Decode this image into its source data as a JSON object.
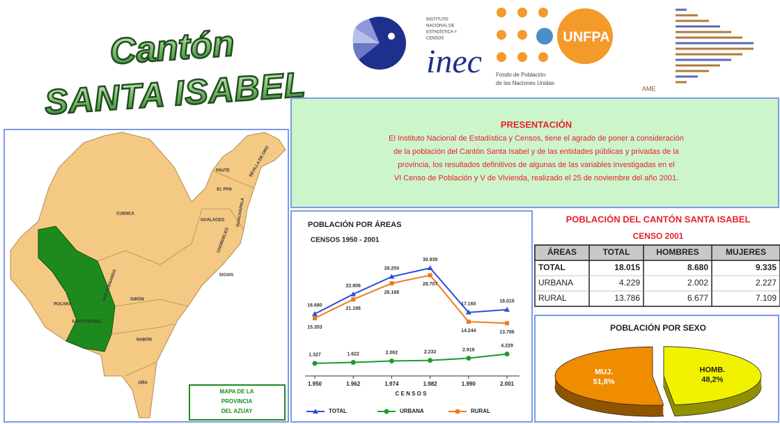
{
  "header": {
    "title_line1": "Cantón",
    "title_line2": "SANTA ISABEL"
  },
  "logos": {
    "inec_small": [
      "INSTITUTO",
      "NACIONAL DE",
      "ESTADÍSTICA Y",
      "CENSOS"
    ],
    "inec": "inec",
    "unfpa": "UNFPA",
    "unfpa_caption": [
      "Fondo de Población",
      "de las Naciones Unidas"
    ],
    "ame": "AME"
  },
  "presentation": {
    "title": "PRESENTACIÓN",
    "lines": [
      "El Instituto Nacional de Estadística y Censos, tiene el agrado de poner a consideración",
      "de la población del Cantón Santa Isabel y de las entidades públicas y privadas de la",
      "provincia, los resultados definitivos de algunas de las variables investigadas en el",
      "VI Censo de Población y V de Vivienda, realizado el 25 de noviembre del año 2001."
    ]
  },
  "map": {
    "caption": [
      "MAPA DE LA",
      "PROVINCIA",
      "DEL AZUAY"
    ],
    "labels": [
      "CUENCA",
      "PAUTE",
      "SEVILLA DE ORO",
      "EL PAN",
      "GUACHAPALA",
      "GUALACEO",
      "CHORDELEG",
      "SIGSIG",
      "PUCARÁ",
      "SANTA ISABEL",
      "SAN FERNANDO",
      "GIRÓN",
      "NABÓN",
      "OÑA"
    ]
  },
  "chart_data": [
    {
      "type": "line",
      "title": "POBLACIÓN POR ÁREAS",
      "subtitle": "CENSOS 1950 - 2001",
      "x_label": "C E N S O S",
      "categories": [
        "1.950",
        "1.962",
        "1.974",
        "1.982",
        "1.990",
        "2.001"
      ],
      "series": [
        {
          "name": "TOTAL",
          "color": "#2b4fd6",
          "marker": "triangle",
          "values": [
            16680,
            22808,
            28250,
            30939,
            17160,
            18015
          ],
          "value_labels": [
            "16.680",
            "22.808",
            "28.250",
            "30.939",
            "17.160",
            "18.015"
          ]
        },
        {
          "name": "URBANA",
          "color": "#1e9a2e",
          "marker": "circle",
          "values": [
            1327,
            1622,
            2062,
            2232,
            2916,
            4229
          ],
          "value_labels": [
            "1.327",
            "1.622",
            "2.062",
            "2.232",
            "2.916",
            "4.229"
          ]
        },
        {
          "name": "RURAL",
          "color": "#f07a1e",
          "marker": "square",
          "values": [
            15353,
            21186,
            26188,
            28707,
            14244,
            13786
          ],
          "value_labels": [
            "15.353",
            "21.186",
            "26.188",
            "28.707",
            "14.244",
            "13.786"
          ]
        }
      ]
    },
    {
      "type": "pie",
      "title": "POBLACIÓN POR SEXO",
      "categories": [
        "MUJ.",
        "HOMB."
      ],
      "values": [
        51.8,
        48.2
      ],
      "value_labels": [
        "51,8%",
        "48,2%"
      ],
      "colors": [
        "#f08c00",
        "#f2f200"
      ]
    }
  ],
  "table": {
    "title": "POBLACIÓN DEL CANTÓN SANTA ISABEL",
    "subtitle": "CENSO 2001",
    "header": [
      "ÁREAS",
      "TOTAL",
      "HOMBRES",
      "MUJERES"
    ],
    "rows": [
      [
        "TOTAL",
        "18.015",
        "8.680",
        "9.335"
      ],
      [
        "URBANA",
        "4.229",
        "2.002",
        "2.227"
      ],
      [
        "RURAL",
        "13.786",
        "6.677",
        "7.109"
      ]
    ]
  }
}
